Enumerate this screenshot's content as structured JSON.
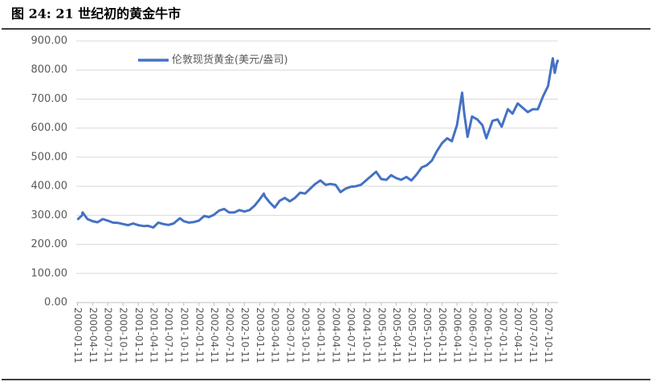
{
  "chart_data": {
    "type": "line",
    "title": "图 24: 21 世纪初的黄金牛市",
    "x": [
      "2000-01-11",
      "2000-02-08",
      "2000-02-11",
      "2000-03-11",
      "2000-04-11",
      "2000-05-11",
      "2000-06-11",
      "2000-07-11",
      "2000-08-11",
      "2000-09-11",
      "2000-10-11",
      "2000-11-11",
      "2000-12-11",
      "2001-01-11",
      "2001-02-11",
      "2001-03-11",
      "2001-04-11",
      "2001-05-11",
      "2001-06-11",
      "2001-07-11",
      "2001-08-11",
      "2001-09-18",
      "2001-10-11",
      "2001-11-11",
      "2001-12-11",
      "2002-01-11",
      "2002-02-11",
      "2002-03-11",
      "2002-04-11",
      "2002-05-11",
      "2002-06-11",
      "2002-07-11",
      "2002-08-11",
      "2002-09-11",
      "2002-10-11",
      "2002-11-11",
      "2002-12-11",
      "2003-01-11",
      "2003-02-05",
      "2003-02-11",
      "2003-03-11",
      "2003-04-11",
      "2003-05-11",
      "2003-06-11",
      "2003-07-11",
      "2003-08-11",
      "2003-09-11",
      "2003-10-11",
      "2003-11-11",
      "2003-12-11",
      "2004-01-11",
      "2004-02-11",
      "2004-03-11",
      "2004-04-11",
      "2004-05-11",
      "2004-06-11",
      "2004-07-11",
      "2004-08-11",
      "2004-09-11",
      "2004-10-11",
      "2004-11-11",
      "2004-12-11",
      "2005-01-11",
      "2005-02-11",
      "2005-03-11",
      "2005-04-11",
      "2005-05-11",
      "2005-06-11",
      "2005-07-11",
      "2005-08-11",
      "2005-09-11",
      "2005-10-11",
      "2005-11-11",
      "2005-12-11",
      "2006-01-11",
      "2006-02-11",
      "2006-03-11",
      "2006-04-11",
      "2006-05-12",
      "2006-05-25",
      "2006-06-14",
      "2006-07-11",
      "2006-08-11",
      "2006-09-11",
      "2006-10-05",
      "2006-11-11",
      "2006-12-11",
      "2007-01-05",
      "2007-02-11",
      "2007-03-11",
      "2007-04-11",
      "2007-05-11",
      "2007-06-11",
      "2007-07-11",
      "2007-08-11",
      "2007-09-11",
      "2007-10-11",
      "2007-11-08",
      "2007-11-20",
      "2007-12-01",
      "2007-12-10"
    ],
    "series": [
      {
        "name": "伦敦现货黄金(美元/盎司)",
        "color": "#4472c4",
        "values": [
          285,
          300,
          310,
          287,
          280,
          276,
          287,
          282,
          275,
          274,
          270,
          266,
          272,
          266,
          263,
          264,
          258,
          275,
          270,
          267,
          272,
          290,
          280,
          275,
          277,
          282,
          298,
          294,
          302,
          316,
          322,
          310,
          310,
          318,
          313,
          318,
          333,
          355,
          375,
          365,
          345,
          327,
          350,
          360,
          348,
          360,
          378,
          375,
          392,
          408,
          420,
          405,
          408,
          405,
          380,
          392,
          398,
          400,
          405,
          420,
          435,
          450,
          425,
          422,
          438,
          428,
          422,
          432,
          420,
          440,
          465,
          472,
          488,
          520,
          548,
          565,
          555,
          610,
          722,
          650,
          570,
          640,
          630,
          610,
          565,
          625,
          630,
          605,
          665,
          650,
          685,
          670,
          655,
          665,
          665,
          710,
          745,
          840,
          790,
          820,
          835
        ]
      }
    ],
    "xlim": [
      "2000-01-04",
      "2007-12-10"
    ],
    "xticks": [
      "2000-01-11",
      "2000-04-11",
      "2000-07-11",
      "2000-10-11",
      "2001-01-11",
      "2001-04-11",
      "2001-07-11",
      "2001-10-11",
      "2002-01-11",
      "2002-04-11",
      "2002-07-11",
      "2002-10-11",
      "2003-01-11",
      "2003-04-11",
      "2003-07-11",
      "2003-10-11",
      "2004-01-11",
      "2004-04-11",
      "2004-07-11",
      "2004-10-11",
      "2005-01-11",
      "2005-04-11",
      "2005-07-11",
      "2005-10-11",
      "2006-01-11",
      "2006-04-11",
      "2006-07-11",
      "2006-10-11",
      "2007-01-11",
      "2007-04-11",
      "2007-07-11",
      "2007-10-11"
    ],
    "ylim": [
      0,
      900
    ],
    "yticks": [
      {
        "value": 0,
        "label": "0.00"
      },
      {
        "value": 100,
        "label": "100.00"
      },
      {
        "value": 200,
        "label": "200.00"
      },
      {
        "value": 300,
        "label": "300.00"
      },
      {
        "value": 400,
        "label": "400.00"
      },
      {
        "value": 500,
        "label": "500.00"
      },
      {
        "value": 600,
        "label": "600.00"
      },
      {
        "value": 700,
        "label": "700.00"
      },
      {
        "value": 800,
        "label": "800.00"
      },
      {
        "value": 900,
        "label": "900.00"
      }
    ],
    "grid": true,
    "legend": "top-left"
  }
}
